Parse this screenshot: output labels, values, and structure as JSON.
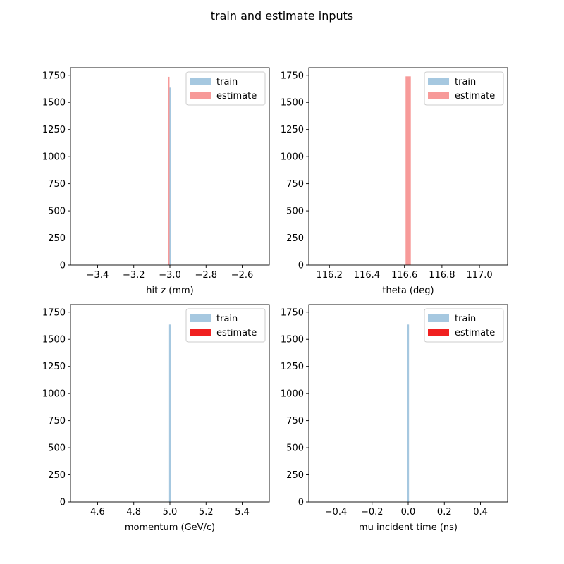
{
  "figure": {
    "title": "train and estimate inputs"
  },
  "colors": {
    "train": "#a6c8e0",
    "estimate_light": "#f79a99",
    "estimate_solid": "#f02020"
  },
  "chart_data": [
    {
      "type": "bar",
      "xlabel": "hit z (mm)",
      "ylabel": "",
      "xlim": [
        -3.55,
        -2.45
      ],
      "ylim": [
        0,
        1820
      ],
      "xticks": [
        -3.4,
        -3.2,
        -3.0,
        -2.8,
        -2.6
      ],
      "xtick_labels": [
        "−3.4",
        "−3.2",
        "−3.0",
        "−2.8",
        "−2.6"
      ],
      "yticks": [
        0,
        250,
        500,
        750,
        1000,
        1250,
        1500,
        1750
      ],
      "ytick_labels": [
        "0",
        "250",
        "500",
        "750",
        "1000",
        "1250",
        "1500",
        "1750"
      ],
      "legend": "top-right",
      "series": [
        {
          "name": "train",
          "color": "#a6c8e0",
          "bins": [
            {
              "x0": -3.005,
              "x1": -2.996,
              "value": 1636
            }
          ]
        },
        {
          "name": "estimate",
          "color": "#f79a99",
          "bins": [
            {
              "x0": -3.008,
              "x1": -3.003,
              "value": 1736
            }
          ]
        }
      ]
    },
    {
      "type": "bar",
      "xlabel": "theta (deg)",
      "ylabel": "",
      "xlim": [
        116.09,
        117.15
      ],
      "ylim": [
        0,
        1820
      ],
      "xticks": [
        116.2,
        116.4,
        116.6,
        116.8,
        117.0
      ],
      "xtick_labels": [
        "116.2",
        "116.4",
        "116.6",
        "116.8",
        "117.0"
      ],
      "yticks": [
        0,
        250,
        500,
        750,
        1000,
        1250,
        1500,
        1750
      ],
      "ytick_labels": [
        "0",
        "250",
        "500",
        "750",
        "1000",
        "1250",
        "1500",
        "1750"
      ],
      "legend": "top-right",
      "series": [
        {
          "name": "train",
          "color": "#a6c8e0",
          "bins": [
            {
              "x0": 116.625,
              "x1": 116.633,
              "value": 1636
            }
          ]
        },
        {
          "name": "estimate",
          "color": "#f79a99",
          "bins": [
            {
              "x0": 116.606,
              "x1": 116.634,
              "value": 1740
            }
          ]
        }
      ]
    },
    {
      "type": "bar",
      "xlabel": "momentum (GeV/c)",
      "ylabel": "",
      "xlim": [
        4.45,
        5.55
      ],
      "ylim": [
        0,
        1820
      ],
      "xticks": [
        4.6,
        4.8,
        5.0,
        5.2,
        5.4
      ],
      "xtick_labels": [
        "4.6",
        "4.8",
        "5.0",
        "5.2",
        "5.4"
      ],
      "yticks": [
        0,
        250,
        500,
        750,
        1000,
        1250,
        1500,
        1750
      ],
      "ytick_labels": [
        "0",
        "250",
        "500",
        "750",
        "1000",
        "1250",
        "1500",
        "1750"
      ],
      "legend": "top-right",
      "series": [
        {
          "name": "train",
          "color": "#a6c8e0",
          "bins": [
            {
              "x0": 4.9955,
              "x1": 5.0045,
              "value": 1636
            }
          ]
        },
        {
          "name": "estimate",
          "color": "#f02020",
          "bins": []
        }
      ]
    },
    {
      "type": "bar",
      "xlabel": "mu incident time (ns)",
      "ylabel": "",
      "xlim": [
        -0.55,
        0.55
      ],
      "ylim": [
        0,
        1820
      ],
      "xticks": [
        -0.4,
        -0.2,
        0.0,
        0.2,
        0.4
      ],
      "xtick_labels": [
        "−0.4",
        "−0.2",
        "0.0",
        "0.2",
        "0.4"
      ],
      "yticks": [
        0,
        250,
        500,
        750,
        1000,
        1250,
        1500,
        1750
      ],
      "ytick_labels": [
        "0",
        "250",
        "500",
        "750",
        "1000",
        "1250",
        "1500",
        "1750"
      ],
      "legend": "top-right",
      "series": [
        {
          "name": "train",
          "color": "#a6c8e0",
          "bins": [
            {
              "x0": -0.0045,
              "x1": 0.0045,
              "value": 1636
            }
          ]
        },
        {
          "name": "estimate",
          "color": "#f02020",
          "bins": []
        }
      ]
    }
  ]
}
